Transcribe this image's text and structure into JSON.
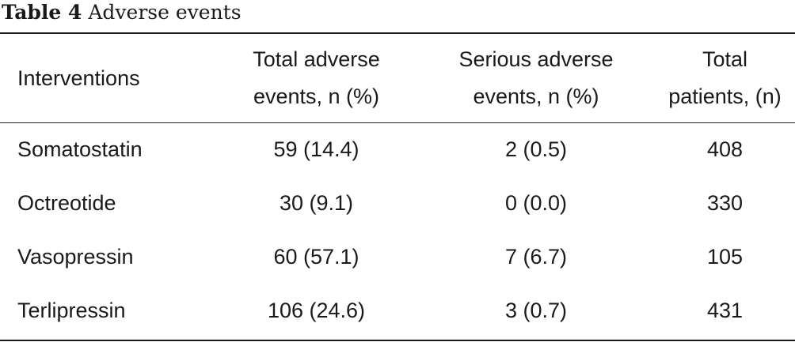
{
  "caption": {
    "label": "Table 4",
    "title": "Adverse events"
  },
  "table": {
    "headers": [
      {
        "lines": [
          "Interventions"
        ]
      },
      {
        "lines": [
          "Total adverse",
          "events, n (%)"
        ]
      },
      {
        "lines": [
          "Serious adverse",
          "events, n (%)"
        ]
      },
      {
        "lines": [
          "Total",
          "patients, (n)"
        ]
      }
    ],
    "rows": [
      [
        "Somatostatin",
        "59 (14.4)",
        "2 (0.5)",
        "408"
      ],
      [
        "Octreotide",
        "30 (9.1)",
        "0 (0.0)",
        "330"
      ],
      [
        "Vasopressin",
        "60 (57.1)",
        "7 (6.7)",
        "105"
      ],
      [
        "Terlipressin",
        "106 (24.6)",
        "3 (0.7)",
        "431"
      ]
    ]
  }
}
